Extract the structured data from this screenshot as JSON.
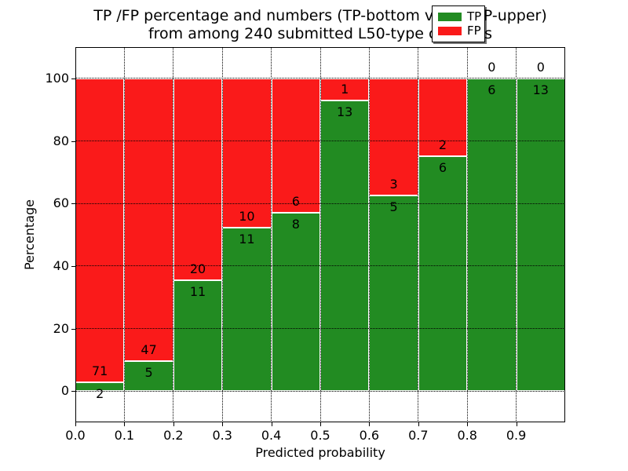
{
  "figure": {
    "title_line1": "TP /FP percentage and numbers (TP-bottom value, FP-upper)",
    "title_line2": "from among 240 submitted L50-type contacts",
    "xlabel": "Predicted probability",
    "ylabel": "Percentage"
  },
  "chart_data": {
    "type": "bar",
    "stacked": true,
    "normalized": "each bin scaled to 100%, green TP portion bottom, red FP portion top",
    "title": "TP /FP percentage and numbers (TP-bottom value, FP-upper)\nfrom among 240 submitted L50-type contacts",
    "xlabel": "Predicted probability",
    "ylabel": "Percentage",
    "total_submitted": 240,
    "bin_width": 0.1,
    "xlim": [
      0.0,
      1.0
    ],
    "ylim": [
      -10,
      110
    ],
    "grid": "dotted black, horizontal at yticks and vertical at xticks, drawn over bars",
    "xticks": [
      "0.0",
      "0.1",
      "0.2",
      "0.3",
      "0.4",
      "0.5",
      "0.6",
      "0.7",
      "0.8",
      "0.9"
    ],
    "yticks": [
      "0",
      "20",
      "40",
      "60",
      "80",
      "100"
    ],
    "bins": [
      {
        "x0": 0.0,
        "x1": 0.1,
        "tp": 2,
        "fp": 71,
        "tp_pct": 2.7
      },
      {
        "x0": 0.1,
        "x1": 0.2,
        "tp": 5,
        "fp": 47,
        "tp_pct": 9.6
      },
      {
        "x0": 0.2,
        "x1": 0.3,
        "tp": 11,
        "fp": 20,
        "tp_pct": 35.5
      },
      {
        "x0": 0.3,
        "x1": 0.4,
        "tp": 11,
        "fp": 10,
        "tp_pct": 52.4
      },
      {
        "x0": 0.4,
        "x1": 0.5,
        "tp": 8,
        "fp": 6,
        "tp_pct": 57.1
      },
      {
        "x0": 0.5,
        "x1": 0.6,
        "tp": 13,
        "fp": 1,
        "tp_pct": 92.9
      },
      {
        "x0": 0.6,
        "x1": 0.7,
        "tp": 5,
        "fp": 3,
        "tp_pct": 62.5
      },
      {
        "x0": 0.7,
        "x1": 0.8,
        "tp": 6,
        "fp": 2,
        "tp_pct": 75.0
      },
      {
        "x0": 0.8,
        "x1": 0.9,
        "tp": 6,
        "fp": 0,
        "tp_pct": 100.0
      },
      {
        "x0": 0.9,
        "x1": 1.0,
        "tp": 13,
        "fp": 0,
        "tp_pct": 100.0
      }
    ],
    "series": [
      {
        "name": "TP",
        "color": "#228b22",
        "values": [
          2,
          5,
          11,
          11,
          8,
          13,
          5,
          6,
          6,
          13
        ]
      },
      {
        "name": "FP",
        "color": "#fa1a1a",
        "values": [
          71,
          47,
          20,
          10,
          6,
          1,
          3,
          2,
          0,
          0
        ]
      }
    ],
    "legend": {
      "position": "upper right",
      "entries": [
        {
          "label": "TP",
          "color": "#228b22"
        },
        {
          "label": "FP",
          "color": "#fa1a1a"
        }
      ]
    }
  },
  "colors": {
    "tp_green": "#228b22",
    "fp_red": "#fa1a1a",
    "background": "#ffffff",
    "text": "#000000"
  }
}
